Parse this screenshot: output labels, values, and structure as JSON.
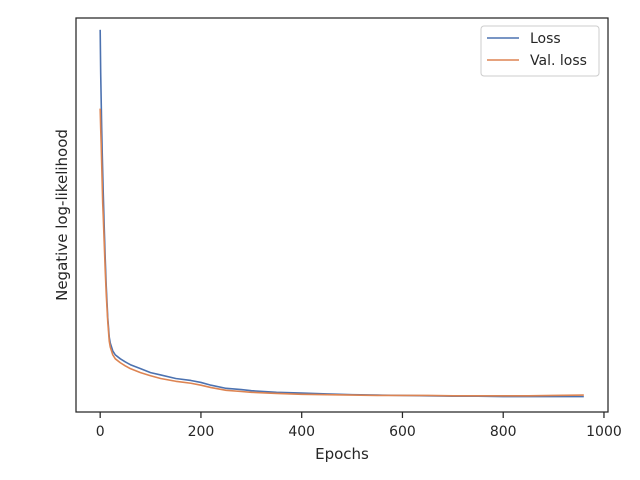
{
  "chart_data": {
    "type": "line",
    "title": "",
    "xlabel": "Epochs",
    "ylabel": "Negative log-likelihood",
    "xlim": [
      -48,
      1008
    ],
    "ylim": [
      0,
      1
    ],
    "x_ticks": [
      0,
      200,
      400,
      600,
      800,
      1000
    ],
    "x_tick_labels": [
      "0",
      "200",
      "400",
      "600",
      "800",
      "1000"
    ],
    "y_ticks_shown": false,
    "grid": false,
    "legend": {
      "placement": "top-right"
    },
    "series": [
      {
        "name": "Loss",
        "color": "#4c72b0",
        "x": [
          0,
          1,
          2,
          3,
          4,
          5,
          6,
          8,
          10,
          12,
          15,
          18,
          20,
          25,
          30,
          40,
          50,
          60,
          80,
          100,
          120,
          150,
          180,
          200,
          220,
          250,
          280,
          300,
          350,
          400,
          450,
          500,
          550,
          600,
          650,
          700,
          750,
          800,
          850,
          900,
          960
        ],
        "y": [
          0.97,
          0.86,
          0.79,
          0.72,
          0.66,
          0.61,
          0.56,
          0.47,
          0.39,
          0.32,
          0.24,
          0.19,
          0.175,
          0.155,
          0.145,
          0.135,
          0.127,
          0.12,
          0.11,
          0.1,
          0.094,
          0.085,
          0.08,
          0.075,
          0.068,
          0.06,
          0.057,
          0.054,
          0.05,
          0.048,
          0.046,
          0.044,
          0.043,
          0.042,
          0.041,
          0.04,
          0.04,
          0.039,
          0.039,
          0.039,
          0.039
        ]
      },
      {
        "name": "Val. loss",
        "color": "#dd8452",
        "x": [
          0,
          1,
          2,
          3,
          4,
          5,
          6,
          8,
          10,
          12,
          15,
          18,
          20,
          25,
          30,
          40,
          50,
          60,
          80,
          100,
          120,
          150,
          180,
          200,
          220,
          250,
          280,
          300,
          350,
          400,
          450,
          500,
          550,
          600,
          650,
          700,
          750,
          800,
          850,
          900,
          960
        ],
        "y": [
          0.77,
          0.72,
          0.68,
          0.63,
          0.58,
          0.53,
          0.5,
          0.43,
          0.36,
          0.3,
          0.23,
          0.18,
          0.165,
          0.145,
          0.135,
          0.125,
          0.117,
          0.11,
          0.1,
          0.092,
          0.085,
          0.078,
          0.073,
          0.068,
          0.062,
          0.055,
          0.052,
          0.05,
          0.047,
          0.045,
          0.044,
          0.043,
          0.042,
          0.042,
          0.042,
          0.041,
          0.041,
          0.041,
          0.041,
          0.042,
          0.043
        ]
      }
    ]
  }
}
